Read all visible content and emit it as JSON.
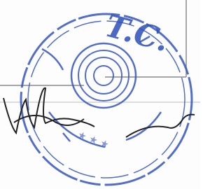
{
  "stamp": {
    "title": "T.C."
  }
}
